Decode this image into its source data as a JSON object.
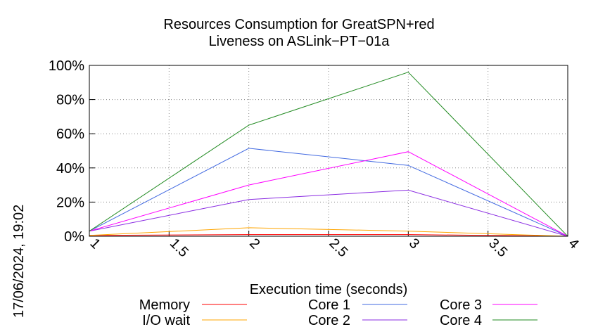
{
  "timestamp": "17/06/2024, 19:02",
  "chart_data": {
    "type": "line",
    "title_line1": "Resources Consumption for GreatSPN+red",
    "title_line2": "Liveness on ASLink−PT−01a",
    "xlabel": "Execution time (seconds)",
    "ylabel": "",
    "xlim": [
      1,
      4
    ],
    "ylim": [
      0,
      100
    ],
    "x_ticks": [
      "1",
      "1.5",
      "2",
      "2.5",
      "3",
      "3.5",
      "4"
    ],
    "y_ticks": [
      "0%",
      "20%",
      "40%",
      "60%",
      "80%",
      "100%"
    ],
    "grid": true,
    "legend_position": "bottom",
    "x": [
      1,
      2,
      3,
      4
    ],
    "series": [
      {
        "name": "Memory",
        "color": "#ff0000",
        "values": [
          0.5,
          1,
          1,
          0
        ]
      },
      {
        "name": "I/O wait",
        "color": "#ffa500",
        "values": [
          0.5,
          5,
          3,
          0
        ]
      },
      {
        "name": "Core 1",
        "color": "#4169e1",
        "values": [
          3,
          51.5,
          41.5,
          0
        ]
      },
      {
        "name": "Core 2",
        "color": "#8a2be2",
        "values": [
          3,
          21.5,
          27,
          0
        ]
      },
      {
        "name": "Core 3",
        "color": "#ff00ff",
        "values": [
          3,
          30,
          49.5,
          0
        ]
      },
      {
        "name": "Core 4",
        "color": "#228b22",
        "values": [
          3,
          65,
          96,
          0
        ]
      }
    ]
  }
}
